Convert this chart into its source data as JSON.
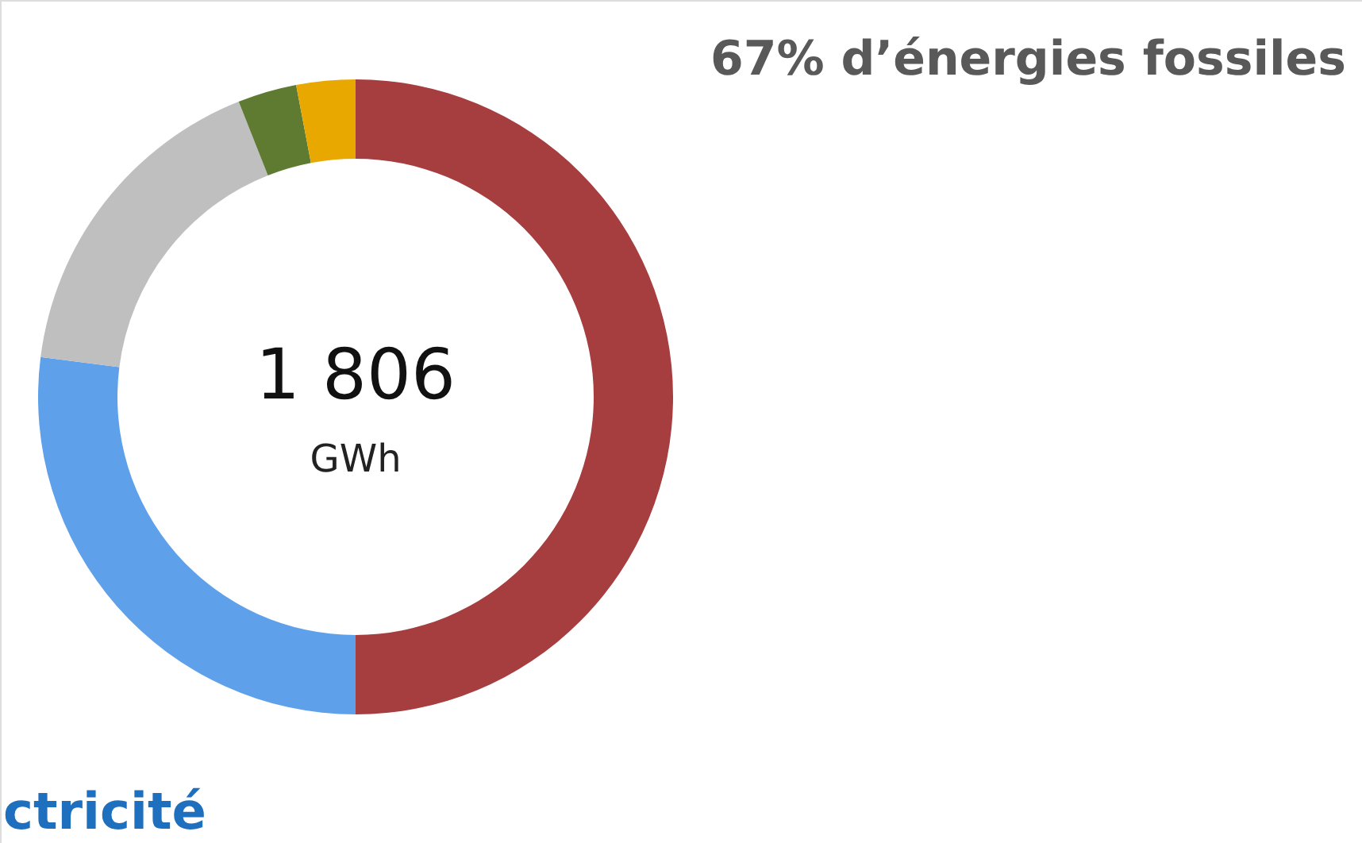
{
  "chart_data": {
    "type": "donut",
    "title": "67% d’énergies fossiles",
    "categories": [
      null,
      null,
      null,
      null,
      null
    ],
    "values": [
      50,
      27,
      17,
      3,
      3
    ],
    "colors": [
      "#a63d3f",
      "#5ea1ea",
      "#bfbfbf",
      "#5f7a31",
      "#e8a800"
    ],
    "annotations": [
      "1 806",
      "GWh",
      "ctricité"
    ]
  }
}
